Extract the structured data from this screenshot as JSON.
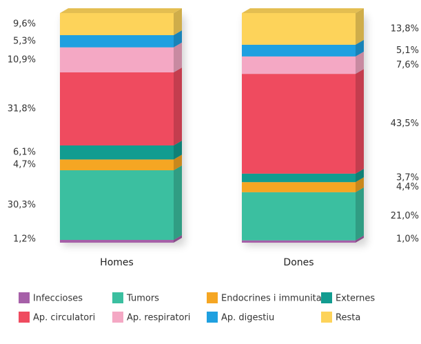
{
  "chart_data": {
    "type": "stacked-bar-3d",
    "categories": [
      "Homes",
      "Dones"
    ],
    "series": [
      {
        "name": "Infeccioses",
        "color": "#a660a8",
        "values": [
          1.2,
          1.0
        ],
        "value_labels": [
          "1,2%",
          "1,0%"
        ]
      },
      {
        "name": "Tumors",
        "color": "#3bbfa0",
        "values": [
          30.3,
          21.0
        ],
        "value_labels": [
          "30,3%",
          "21,0%"
        ]
      },
      {
        "name": "Endocrines i immunitat",
        "color": "#f5a623",
        "values": [
          4.7,
          4.4
        ],
        "value_labels": [
          "4,7%",
          "4,4%"
        ]
      },
      {
        "name": "Externes",
        "color": "#129c90",
        "values": [
          6.1,
          3.7
        ],
        "value_labels": [
          "6,1%",
          "3,7%"
        ]
      },
      {
        "name": "Ap. circulatori",
        "color": "#ef4b5f",
        "values": [
          31.8,
          43.5
        ],
        "value_labels": [
          "31,8%",
          "43,5%"
        ]
      },
      {
        "name": "Ap. respiratori",
        "color": "#f4a8c4",
        "values": [
          10.9,
          7.6
        ],
        "value_labels": [
          "10,9%",
          "7,6%"
        ]
      },
      {
        "name": "Ap. digestiu",
        "color": "#1fa0e0",
        "values": [
          5.3,
          5.1
        ],
        "value_labels": [
          "5,3%",
          "5,1%"
        ]
      },
      {
        "name": "Resta",
        "color": "#fdd35a",
        "values": [
          9.6,
          13.8
        ],
        "value_labels": [
          "9,6%",
          "13,8%"
        ]
      }
    ]
  }
}
